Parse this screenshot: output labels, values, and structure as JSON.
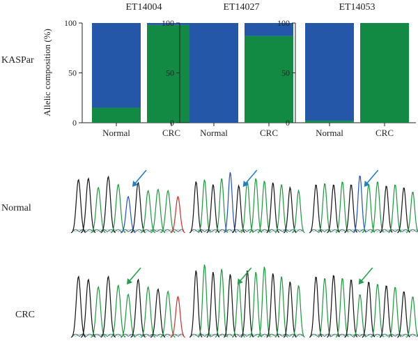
{
  "row_labels": {
    "kaspar": "KASPar",
    "normal": "Normal",
    "crc": "CRC"
  },
  "ylabel": "Allelic composition (%)",
  "colors": {
    "allele_blue": "#2457a8",
    "allele_green": "#138a44",
    "trace_black": "#111111",
    "trace_green": "#1a9a3c",
    "trace_blue": "#1f4fd0",
    "trace_red": "#d22b2b",
    "arrow_blue": "#1f7fc8",
    "arrow_green": "#22a34a"
  },
  "chart_data": [
    {
      "type": "bar",
      "title": "ET14004",
      "categories": [
        "Normal",
        "CRC"
      ],
      "series": [
        {
          "values": [
            15,
            98
          ]
        },
        {
          "values": [
            85,
            2
          ]
        }
      ],
      "ylim": [
        0,
        100
      ],
      "yticks": [
        0,
        50,
        100
      ]
    },
    {
      "type": "bar",
      "title": "ET14027",
      "categories": [
        "Normal",
        "CRC"
      ],
      "series": [
        {
          "values": [
            0,
            87
          ]
        },
        {
          "values": [
            100,
            13
          ]
        }
      ],
      "ylim": [
        0,
        100
      ],
      "yticks": [
        0,
        50,
        100
      ]
    },
    {
      "type": "bar",
      "title": "ET14053",
      "categories": [
        "Normal",
        "CRC"
      ],
      "series": [
        {
          "values": [
            2,
            100
          ]
        },
        {
          "values": [
            98,
            0
          ]
        }
      ],
      "ylim": [
        0,
        100
      ],
      "yticks": [
        0,
        50,
        100
      ]
    }
  ],
  "chromatograms": [
    {
      "row": "normal",
      "sample": "ET14004",
      "arrow": "blue",
      "peaks": [
        [
          "k",
          0.88
        ],
        [
          "k",
          0.9
        ],
        [
          "g",
          0.75
        ],
        [
          "k",
          0.93
        ],
        [
          "g",
          0.8
        ],
        [
          "b",
          0.6
        ],
        [
          "k",
          0.83
        ],
        [
          "g",
          0.7
        ],
        [
          "g",
          0.72
        ],
        [
          "g",
          0.7
        ],
        [
          "r",
          0.6
        ]
      ]
    },
    {
      "row": "normal",
      "sample": "ET14027",
      "arrow": "blue",
      "peaks": [
        [
          "k",
          0.85
        ],
        [
          "g",
          0.88
        ],
        [
          "k",
          0.8
        ],
        [
          "g",
          0.9
        ],
        [
          "b",
          1.0
        ],
        [
          "k",
          0.78
        ],
        [
          "g",
          0.85
        ],
        [
          "g",
          0.9
        ],
        [
          "g",
          0.86
        ],
        [
          "k",
          0.83
        ],
        [
          "g",
          0.8
        ],
        [
          "k",
          0.75
        ],
        [
          "g",
          0.7
        ]
      ]
    },
    {
      "row": "normal",
      "sample": "ET14053",
      "arrow": "blue",
      "peaks": [
        [
          "k",
          0.8
        ],
        [
          "g",
          0.82
        ],
        [
          "k",
          0.8
        ],
        [
          "g",
          0.85
        ],
        [
          "k",
          0.8
        ],
        [
          "b",
          0.95
        ],
        [
          "g",
          0.8
        ],
        [
          "g",
          0.85
        ],
        [
          "k",
          0.78
        ],
        [
          "g",
          0.8
        ],
        [
          "k",
          0.75
        ],
        [
          "g",
          0.68
        ]
      ]
    },
    {
      "row": "crc",
      "sample": "ET14004",
      "arrow": "green",
      "peaks": [
        [
          "k",
          0.82
        ],
        [
          "k",
          0.78
        ],
        [
          "g",
          0.68
        ],
        [
          "k",
          0.82
        ],
        [
          "g",
          0.7
        ],
        [
          "g",
          0.58
        ],
        [
          "k",
          0.78
        ],
        [
          "g",
          0.68
        ],
        [
          "k",
          0.65
        ],
        [
          "g",
          0.62
        ],
        [
          "r",
          0.55
        ]
      ]
    },
    {
      "row": "crc",
      "sample": "ET14027",
      "arrow": "green",
      "peaks": [
        [
          "k",
          0.9
        ],
        [
          "g",
          0.98
        ],
        [
          "k",
          0.88
        ],
        [
          "g",
          0.92
        ],
        [
          "k",
          0.85
        ],
        [
          "g",
          0.75
        ],
        [
          "k",
          0.9
        ],
        [
          "g",
          0.88
        ],
        [
          "g",
          0.95
        ],
        [
          "k",
          0.86
        ],
        [
          "g",
          0.82
        ],
        [
          "k",
          0.75
        ],
        [
          "g",
          0.7
        ]
      ]
    },
    {
      "row": "crc",
      "sample": "ET14053",
      "arrow": "green",
      "peaks": [
        [
          "k",
          0.82
        ],
        [
          "g",
          0.8
        ],
        [
          "k",
          0.84
        ],
        [
          "g",
          0.8
        ],
        [
          "k",
          0.78
        ],
        [
          "g",
          0.58
        ],
        [
          "k",
          0.75
        ],
        [
          "g",
          0.72
        ],
        [
          "k",
          0.7
        ],
        [
          "g",
          0.68
        ],
        [
          "k",
          0.62
        ],
        [
          "g",
          0.55
        ]
      ]
    }
  ]
}
